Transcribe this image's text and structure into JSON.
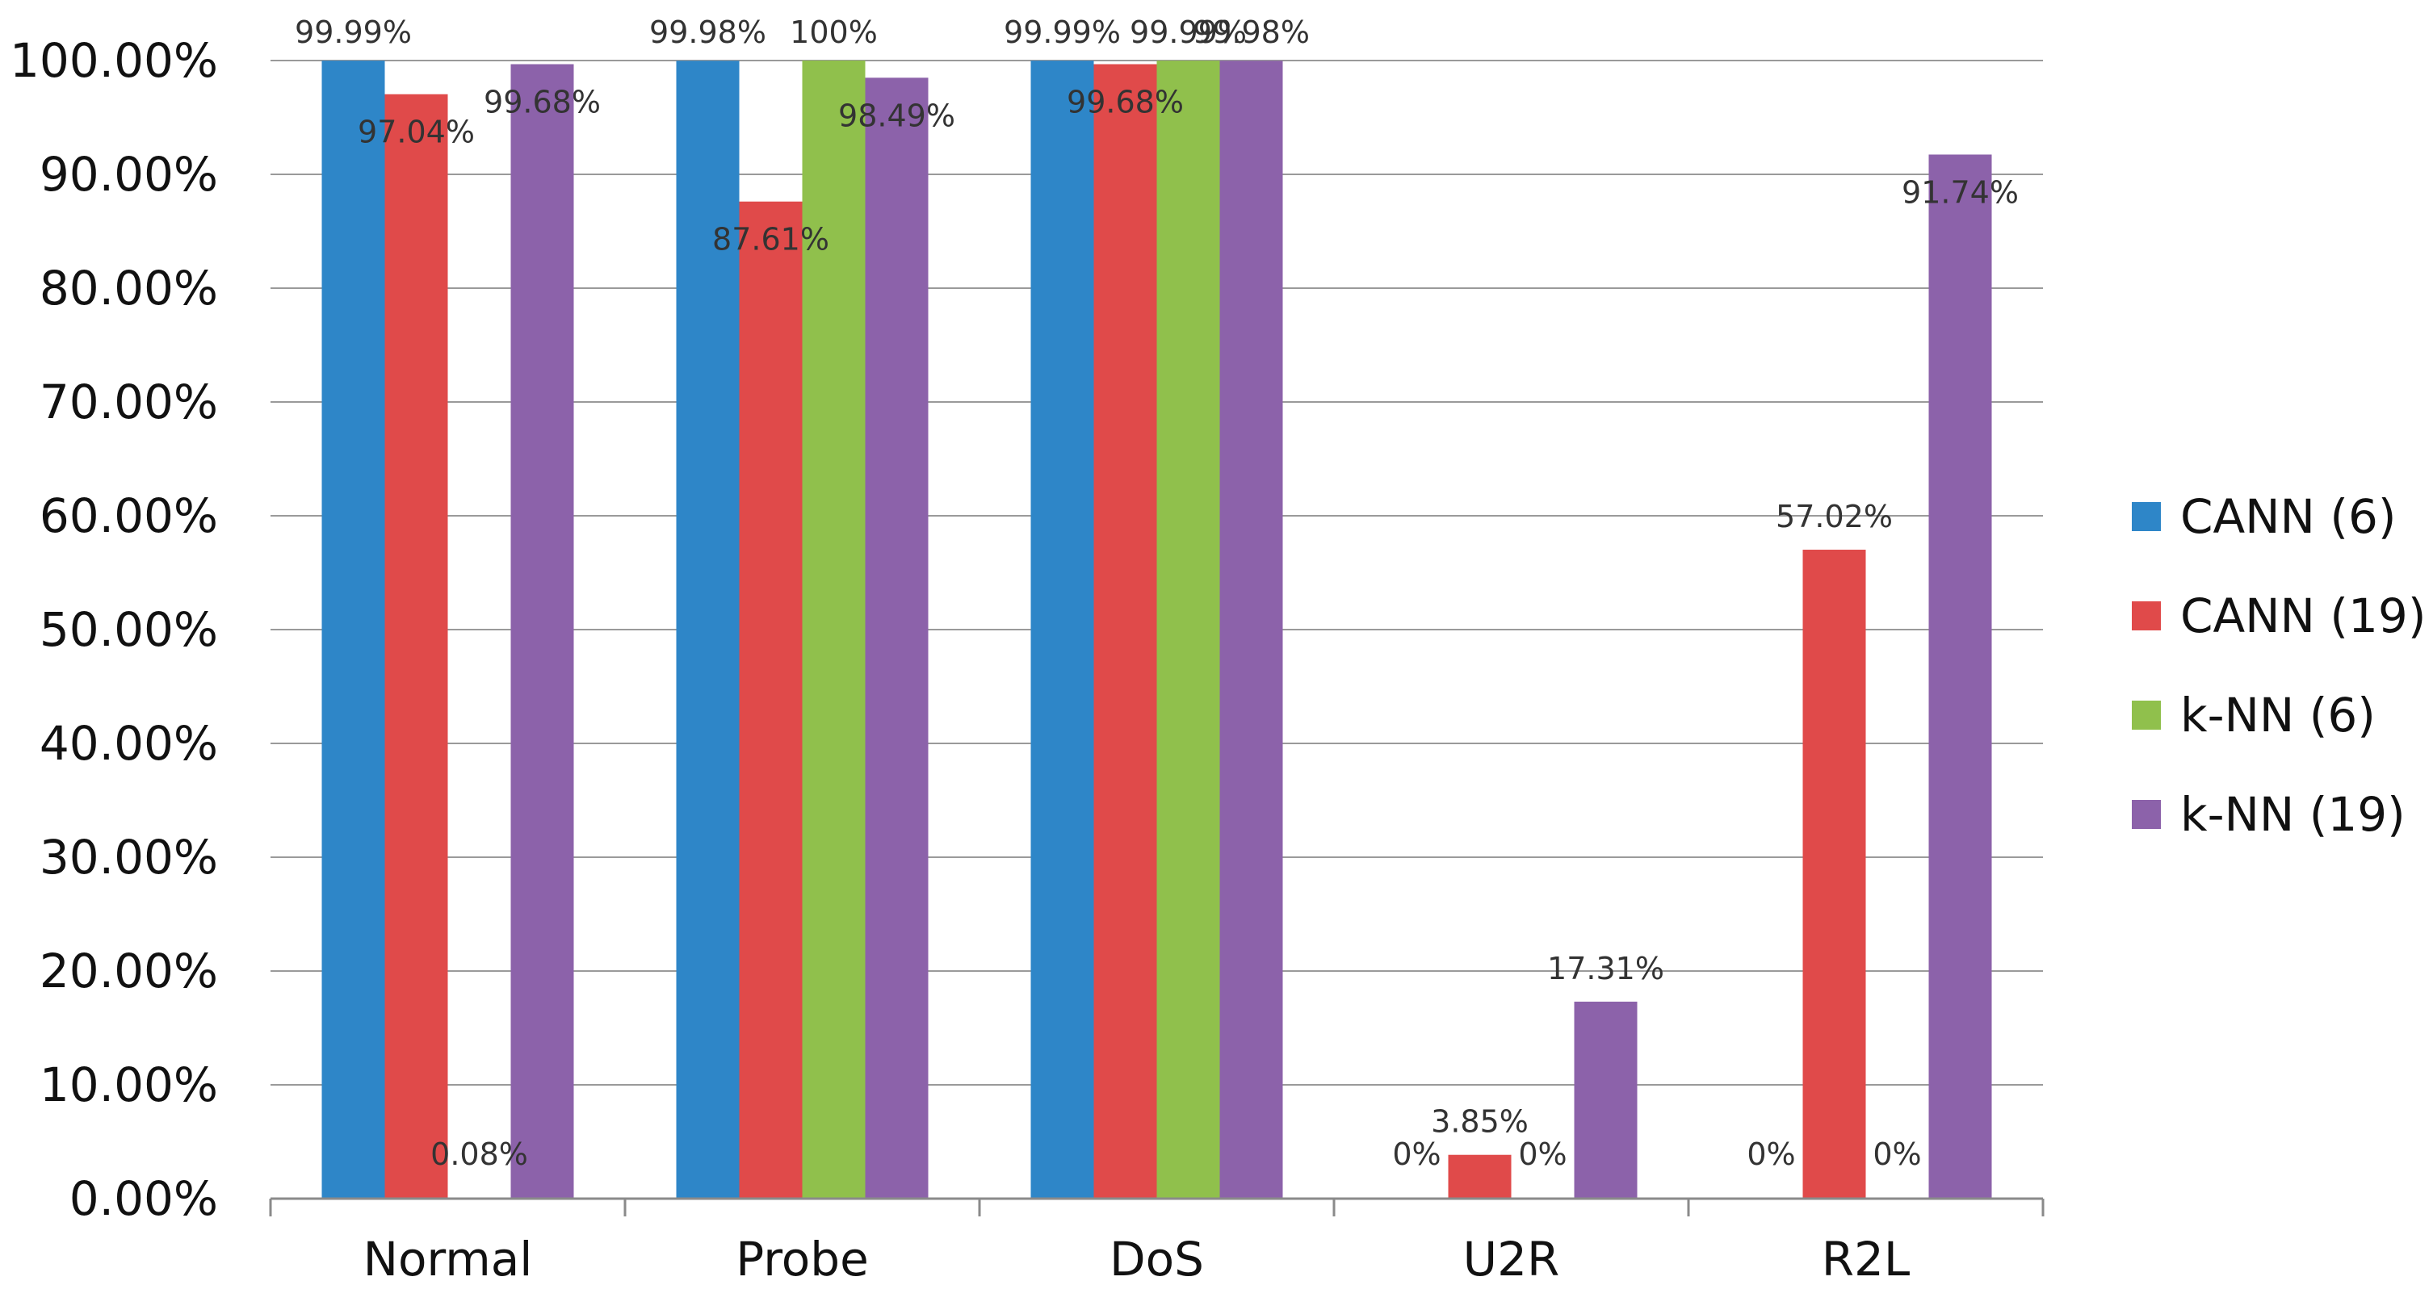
{
  "chart_data": {
    "type": "bar",
    "categories": [
      "Normal",
      "Probe",
      "DoS",
      "U2R",
      "R2L"
    ],
    "series": [
      {
        "name": "CANN (6)",
        "color": "#2e86c8",
        "values": [
          99.99,
          99.98,
          99.99,
          0,
          0
        ],
        "labels": [
          "99.99%",
          "99.98%",
          "99.99%",
          "",
          "0%"
        ]
      },
      {
        "name": "CANN (19)",
        "color": "#e04a4a",
        "values": [
          97.04,
          87.61,
          99.68,
          3.85,
          57.02
        ],
        "labels": [
          "97.04%",
          "87.61%",
          "99.68%",
          "3.85%",
          "57.02%"
        ]
      },
      {
        "name": "k-NN (6)",
        "color": "#90c04c",
        "values": [
          0.08,
          100,
          99.99,
          0,
          0
        ],
        "labels": [
          "0.08%",
          "100%",
          "99.99%",
          "0%",
          "0%"
        ]
      },
      {
        "name": "k-NN (19)",
        "color": "#8c62aa",
        "values": [
          99.68,
          98.49,
          99.98,
          17.31,
          91.74
        ],
        "labels": [
          "99.68%",
          "98.49%",
          "99.98%",
          "17.31%",
          "91.74%"
        ]
      }
    ],
    "u2r_cann6_label": "0%",
    "y_ticks": [
      "0.00%",
      "10.00%",
      "20.00%",
      "30.00%",
      "40.00%",
      "50.00%",
      "60.00%",
      "70.00%",
      "80.00%",
      "90.00%",
      "100.00%"
    ],
    "ylim": [
      0,
      100
    ],
    "grid": true,
    "legend_position": "right"
  }
}
